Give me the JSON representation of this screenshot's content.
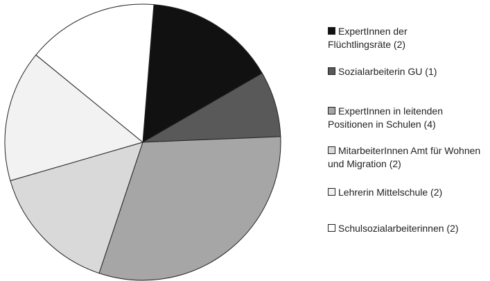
{
  "chart_data": {
    "type": "pie",
    "categories": [
      "ExpertInnen der Flüchtlingsräte (2)",
      "Sozialarbeiterin GU (1)",
      "ExpertInnen in leitenden Positionen in Schulen (4)",
      "MitarbeiterInnen Amt für Wohnen und Migration (2)",
      "Lehrerin Mittelschule (2)",
      "Schulsozialarbeiterinnen (2)"
    ],
    "values": [
      2,
      1,
      4,
      2,
      2,
      2
    ],
    "colors": [
      "#111111",
      "#595959",
      "#a6a6a6",
      "#d9d9d9",
      "#f2f2f2",
      "#ffffff"
    ],
    "legend": "right"
  }
}
